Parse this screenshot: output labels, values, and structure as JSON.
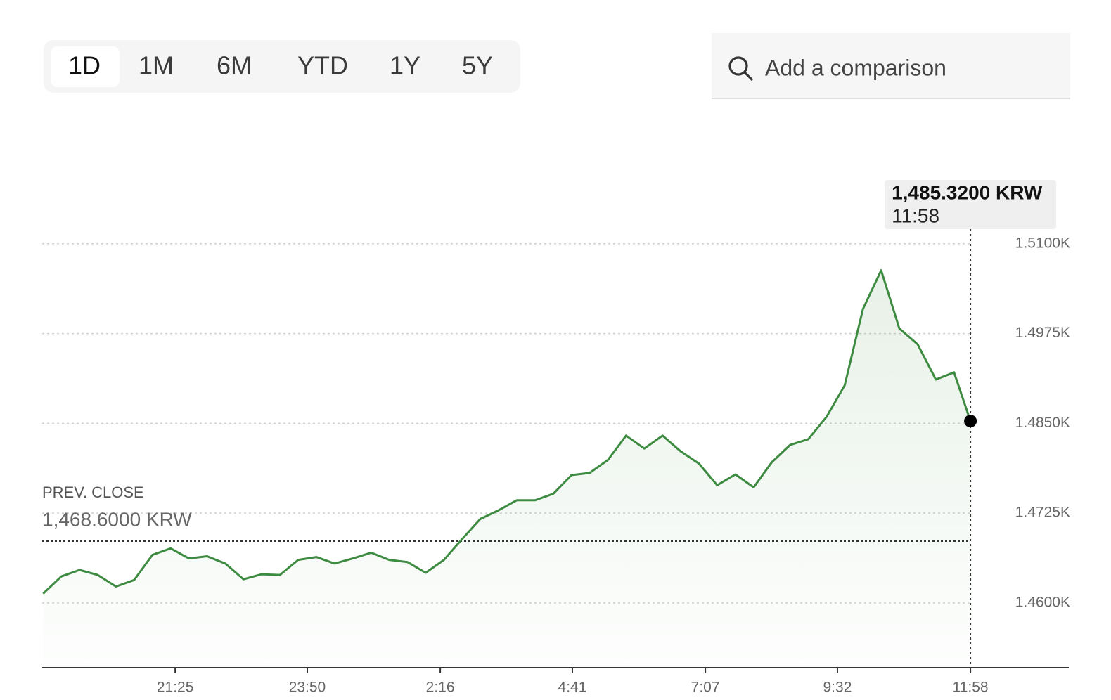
{
  "tabs": [
    "1D",
    "1M",
    "6M",
    "YTD",
    "1Y",
    "5Y"
  ],
  "search_placeholder": "Add a comparison",
  "chart_data": {
    "type": "line",
    "x": [
      "19:00",
      "19:20",
      "19:40",
      "20:00",
      "20:20",
      "20:40",
      "21:00",
      "21:20",
      "21:40",
      "22:00",
      "22:20",
      "22:40",
      "23:00",
      "23:20",
      "23:40",
      "0:00",
      "0:20",
      "0:40",
      "1:00",
      "1:20",
      "1:40",
      "2:00",
      "2:20",
      "2:40",
      "3:00",
      "3:20",
      "3:40",
      "4:00",
      "4:20",
      "4:40",
      "5:00",
      "5:20",
      "5:40",
      "6:00",
      "6:20",
      "6:40",
      "7:00",
      "7:20",
      "7:40",
      "8:00",
      "8:20",
      "8:40",
      "9:00",
      "9:20",
      "9:40",
      "10:00",
      "10:20",
      "10:40",
      "11:00",
      "11:20",
      "11:40",
      "11:58"
    ],
    "values": [
      1461.3,
      1463.7,
      1464.6,
      1463.9,
      1462.3,
      1463.2,
      1466.7,
      1467.6,
      1466.2,
      1466.5,
      1465.5,
      1463.3,
      1464.0,
      1463.9,
      1466.0,
      1466.4,
      1465.5,
      1466.2,
      1467.0,
      1466.0,
      1465.7,
      1464.2,
      1466.0,
      1468.9,
      1471.7,
      1472.9,
      1474.3,
      1474.3,
      1475.2,
      1477.8,
      1478.1,
      1479.9,
      1483.3,
      1481.5,
      1483.3,
      1481.1,
      1479.4,
      1476.4,
      1477.9,
      1476.1,
      1479.6,
      1482.0,
      1482.8,
      1485.9,
      1490.3,
      1500.9,
      1506.3,
      1498.2,
      1496.0,
      1491.1,
      1492.1,
      1485.32
    ],
    "color": "#3d8b40",
    "xlim": [
      "18:59",
      "13:46"
    ],
    "xticks": [
      "21:25",
      "23:50",
      "2:16",
      "4:41",
      "7:07",
      "9:32",
      "11:58"
    ],
    "ylim": [
      1451,
      1518
    ],
    "yticks": [
      {
        "value": 1460,
        "label": "1.4600K"
      },
      {
        "value": 1472.5,
        "label": "1.4725K"
      },
      {
        "value": 1485,
        "label": "1.4850K"
      },
      {
        "value": 1497.5,
        "label": "1.4975K"
      },
      {
        "value": 1510,
        "label": "1.5100K"
      }
    ],
    "grid": true,
    "prev_close": {
      "label": "PREV. CLOSE",
      "value": 1468.6,
      "value_label": "1,468.6000 KRW"
    },
    "tooltip": {
      "value_label": "1,485.3200 KRW",
      "time": "11:58"
    }
  }
}
